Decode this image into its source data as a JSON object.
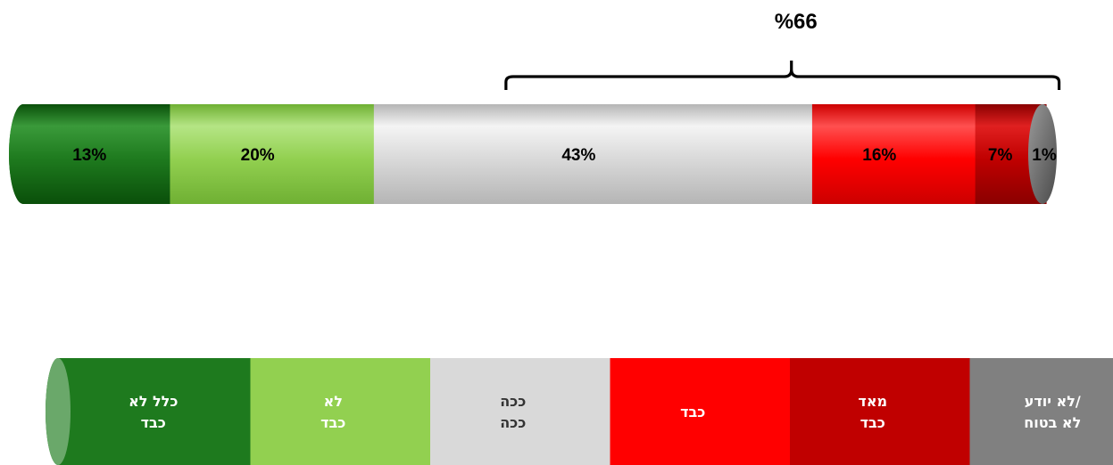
{
  "chart_data": {
    "type": "bar",
    "orientation": "horizontal-stacked",
    "unit": "%",
    "series": [
      {
        "name": "כלל לא כבד",
        "value": 13,
        "label": "13%",
        "legend_lines": [
          "כלל לא",
          "כבד"
        ],
        "color": "#1e7a1e",
        "dark": "#0a4f0a",
        "light": "#3a9a3a"
      },
      {
        "name": "לא כבד",
        "value": 20,
        "label": "20%",
        "legend_lines": [
          "לא",
          "כבד"
        ],
        "color": "#92d050",
        "dark": "#6fb033",
        "light": "#b5e585"
      },
      {
        "name": "ככה ככה",
        "value": 43,
        "label": "43%",
        "legend_lines": [
          "ככה",
          "ככה"
        ],
        "color": "#d9d9d9",
        "dark": "#b5b5b5",
        "light": "#f4f4f4"
      },
      {
        "name": "כבד",
        "value": 16,
        "label": "16%",
        "legend_lines": [
          "כבד"
        ],
        "color": "#ff0000",
        "dark": "#cc0000",
        "light": "#ff5050"
      },
      {
        "name": "מאד כבד",
        "value": 7,
        "label": "7%",
        "legend_lines": [
          "מאד",
          "כבד"
        ],
        "color": "#c00000",
        "dark": "#8a0000",
        "light": "#e02020"
      },
      {
        "name": "לא יודע/ לא בטוח",
        "value": 1,
        "label": "1%",
        "legend_lines": [
          "/לא יודע",
          "לא בטוח"
        ],
        "color": "#808080",
        "dark": "#5a5a5a",
        "light": "#a8a8a8"
      }
    ],
    "annotation": {
      "label": "66%",
      "display": "%66",
      "spans": [
        2,
        4
      ]
    },
    "legend": {
      "position": "bottom"
    }
  }
}
